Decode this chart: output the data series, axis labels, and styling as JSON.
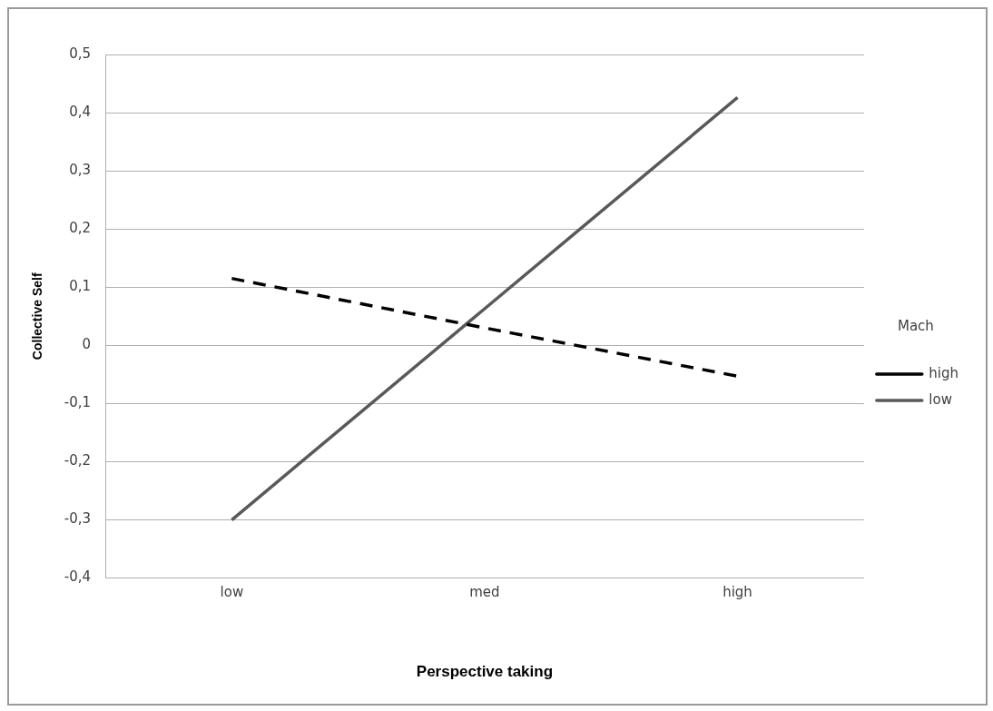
{
  "chart_data": {
    "type": "line",
    "xlabel": "Perspective taking",
    "ylabel": "Collective Self",
    "legend_title": "Mach",
    "categories": [
      "low",
      "med",
      "high"
    ],
    "series": [
      {
        "name": "high",
        "color": "#000000",
        "line_style": "dashed",
        "values": [
          0.115,
          0.03,
          -0.053
        ]
      },
      {
        "name": "low",
        "color": "#595959",
        "line_style": "solid",
        "values": [
          -0.3,
          0.063,
          0.426
        ]
      }
    ],
    "ylim": [
      -0.4,
      0.5
    ],
    "yticks": [
      {
        "value": -0.4,
        "label": "-0,4"
      },
      {
        "value": -0.3,
        "label": "-0,3"
      },
      {
        "value": -0.2,
        "label": "-0,2"
      },
      {
        "value": -0.1,
        "label": "-0,1"
      },
      0,
      {
        "value": 0.1,
        "label": "0,1"
      },
      {
        "value": 0.2,
        "label": "0,2"
      },
      {
        "value": 0.3,
        "label": "0,3"
      },
      {
        "value": 0.4,
        "label": "0,4"
      },
      {
        "value": 0.5,
        "label": "0,5"
      }
    ],
    "grid": "y",
    "legend": "right",
    "marker": "none"
  }
}
